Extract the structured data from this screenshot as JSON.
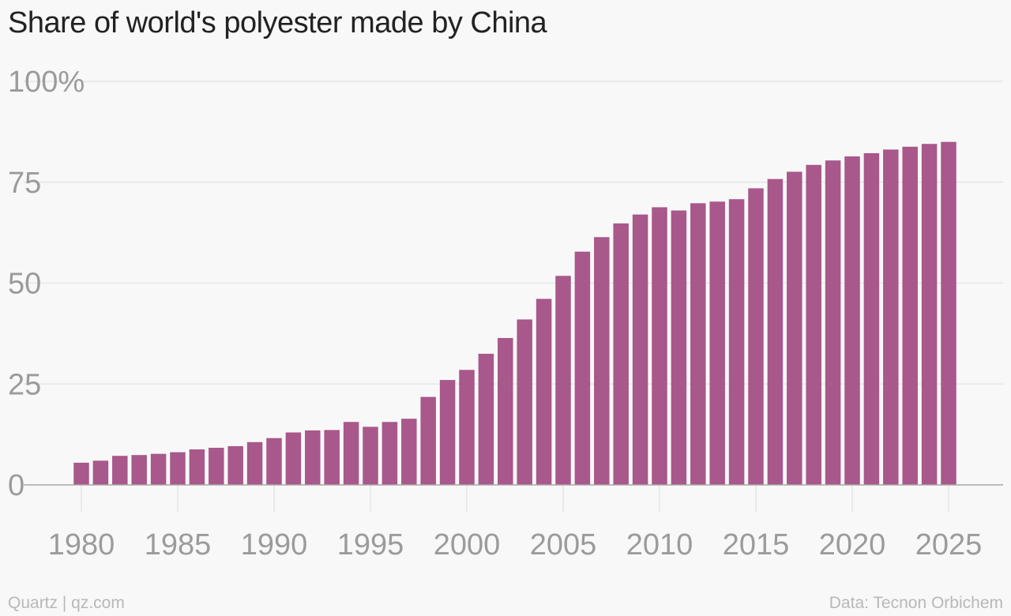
{
  "chart_data": {
    "type": "bar",
    "title": "Share of world's polyester made by China",
    "xlabel": "",
    "ylabel": "",
    "ylim": [
      0,
      100
    ],
    "yticks": [
      0,
      25,
      50,
      75,
      100
    ],
    "ytick_labels": [
      "0",
      "25",
      "50",
      "75",
      "100%"
    ],
    "xticks": [
      1980,
      1985,
      1990,
      1995,
      2000,
      2005,
      2010,
      2015,
      2020,
      2025
    ],
    "xtick_labels": [
      "1980",
      "1985",
      "1990",
      "1995",
      "2000",
      "2005",
      "2010",
      "2015",
      "2020",
      "2025"
    ],
    "grid": true,
    "bar_color": "#a8588a",
    "categories": [
      1980,
      1981,
      1982,
      1983,
      1984,
      1985,
      1986,
      1987,
      1988,
      1989,
      1990,
      1991,
      1992,
      1993,
      1994,
      1995,
      1996,
      1997,
      1998,
      1999,
      2000,
      2001,
      2002,
      2003,
      2004,
      2005,
      2006,
      2007,
      2008,
      2009,
      2010,
      2011,
      2012,
      2013,
      2014,
      2015,
      2016,
      2017,
      2018,
      2019,
      2020,
      2021,
      2022,
      2023,
      2024,
      2025
    ],
    "values": [
      5.5,
      6.0,
      7.2,
      7.4,
      7.7,
      8.1,
      8.8,
      9.2,
      9.6,
      10.6,
      11.6,
      13.0,
      13.5,
      13.6,
      15.6,
      14.4,
      15.6,
      16.4,
      21.8,
      26.0,
      28.5,
      32.5,
      36.4,
      41.0,
      46.1,
      51.8,
      57.8,
      61.4,
      64.8,
      67.0,
      68.8,
      68.0,
      69.8,
      70.2,
      70.8,
      73.5,
      75.8,
      77.6,
      79.3,
      80.4,
      81.4,
      82.2,
      83.1,
      83.8,
      84.5,
      85.0
    ]
  },
  "footer": {
    "source_left": "Quartz | qz.com",
    "source_right": "Data: Tecnon Orbichem"
  }
}
